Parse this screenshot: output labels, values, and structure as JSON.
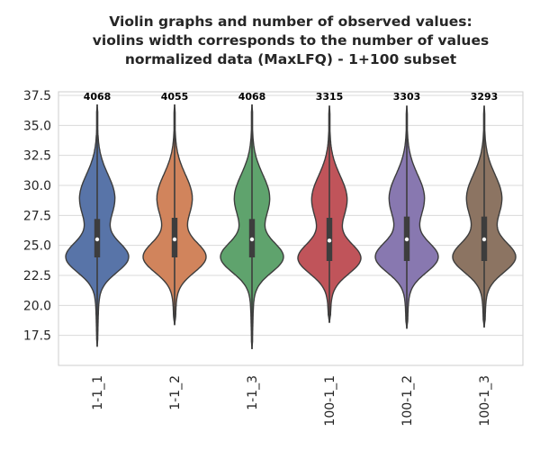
{
  "chart_data": {
    "type": "violin",
    "title": [
      "Violin graphs and number of observed values:",
      "violins width corresponds to the number of values",
      "normalized data (MaxLFQ) - 1+100 subset"
    ],
    "xlabel": "",
    "ylabel": "",
    "ylim": [
      15.0,
      37.8
    ],
    "yticks": [
      "17.5",
      "20.0",
      "22.5",
      "25.0",
      "27.5",
      "30.0",
      "32.5",
      "35.0",
      "37.5"
    ],
    "grid": "horizontal",
    "categories": [
      "1-1_1",
      "1-1_2",
      "1-1_3",
      "100-1_1",
      "100-1_2",
      "100-1_3"
    ],
    "counts": [
      "4068",
      "4055",
      "4068",
      "3315",
      "3303",
      "3293"
    ],
    "colors": [
      "#5874a8",
      "#d1845c",
      "#5fa36d",
      "#c0545a",
      "#8878b0",
      "#8c7462"
    ],
    "violins": [
      {
        "min": 16.6,
        "max": 36.7,
        "q1": 24.0,
        "median": 25.5,
        "q3": 27.2
      },
      {
        "min": 18.4,
        "max": 36.7,
        "q1": 24.0,
        "median": 25.5,
        "q3": 27.3
      },
      {
        "min": 16.4,
        "max": 36.7,
        "q1": 24.0,
        "median": 25.5,
        "q3": 27.2
      },
      {
        "min": 18.6,
        "max": 36.6,
        "q1": 23.7,
        "median": 25.4,
        "q3": 27.3
      },
      {
        "min": 18.1,
        "max": 36.6,
        "q1": 23.7,
        "median": 25.5,
        "q3": 27.4
      },
      {
        "min": 18.2,
        "max": 36.6,
        "q1": 23.7,
        "median": 25.5,
        "q3": 27.4
      }
    ]
  }
}
